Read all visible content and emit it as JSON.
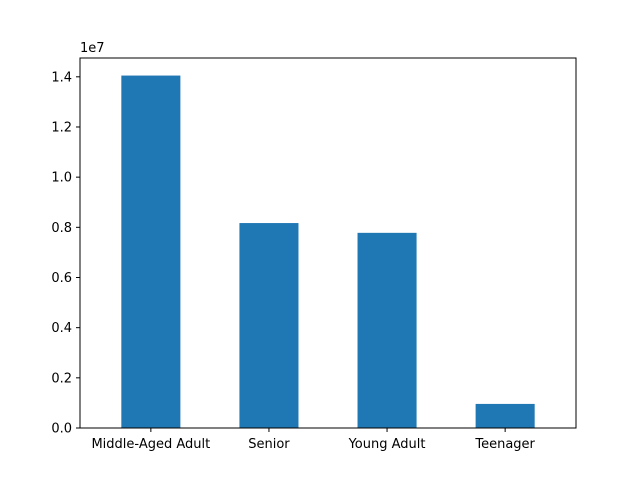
{
  "chart_data": {
    "type": "bar",
    "categories": [
      "Middle-Aged Adult",
      "Senior",
      "Young Adult",
      "Teenager"
    ],
    "values": [
      14050000,
      8170000,
      7780000,
      960000
    ],
    "title": "",
    "xlabel": "",
    "ylabel": "",
    "ylim": [
      0,
      14750000
    ],
    "y_offset_label": "1e7",
    "y_ticks": [
      0,
      2000000,
      4000000,
      6000000,
      8000000,
      10000000,
      12000000,
      14000000
    ],
    "y_tick_labels": [
      "0.0",
      "0.2",
      "0.4",
      "0.6",
      "0.8",
      "1.0",
      "1.2",
      "1.4"
    ],
    "bar_color": "#1f77b4",
    "grid": false,
    "legend": "none"
  }
}
